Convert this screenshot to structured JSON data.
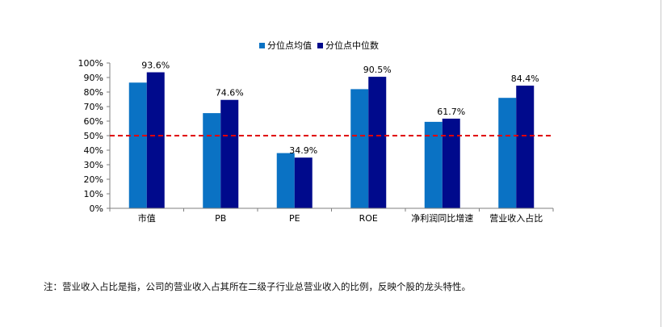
{
  "chart_data": {
    "type": "bar",
    "categories": [
      "市值",
      "PB",
      "PE",
      "ROE",
      "净利润同比增速",
      "营业收入占比"
    ],
    "series": [
      {
        "name": "分位点均值",
        "values": [
          86.5,
          65.5,
          38.0,
          82.0,
          59.5,
          76.0
        ]
      },
      {
        "name": "分位点中位数",
        "values": [
          93.6,
          74.6,
          34.9,
          90.5,
          61.7,
          84.4
        ]
      }
    ],
    "data_labels": [
      "93.6%",
      "74.6%",
      "34.9%",
      "90.5%",
      "61.7%",
      "84.4%"
    ],
    "y_ticks": [
      "0%",
      "10%",
      "20%",
      "30%",
      "40%",
      "50%",
      "60%",
      "70%",
      "80%",
      "90%",
      "100%"
    ],
    "ylim": [
      0,
      100
    ],
    "reference_line": 50,
    "legend_position": "top-center",
    "grid": false,
    "colors": {
      "mean": "#0A72C4",
      "median": "#000A8C",
      "reference": "#E00000",
      "axis": "#7f7f7f"
    }
  },
  "note": {
    "text": "注：营业收入占比是指，公司的营业收入占其所在二级子行业总营业收入的比例，反映个股的龙头特性。"
  }
}
